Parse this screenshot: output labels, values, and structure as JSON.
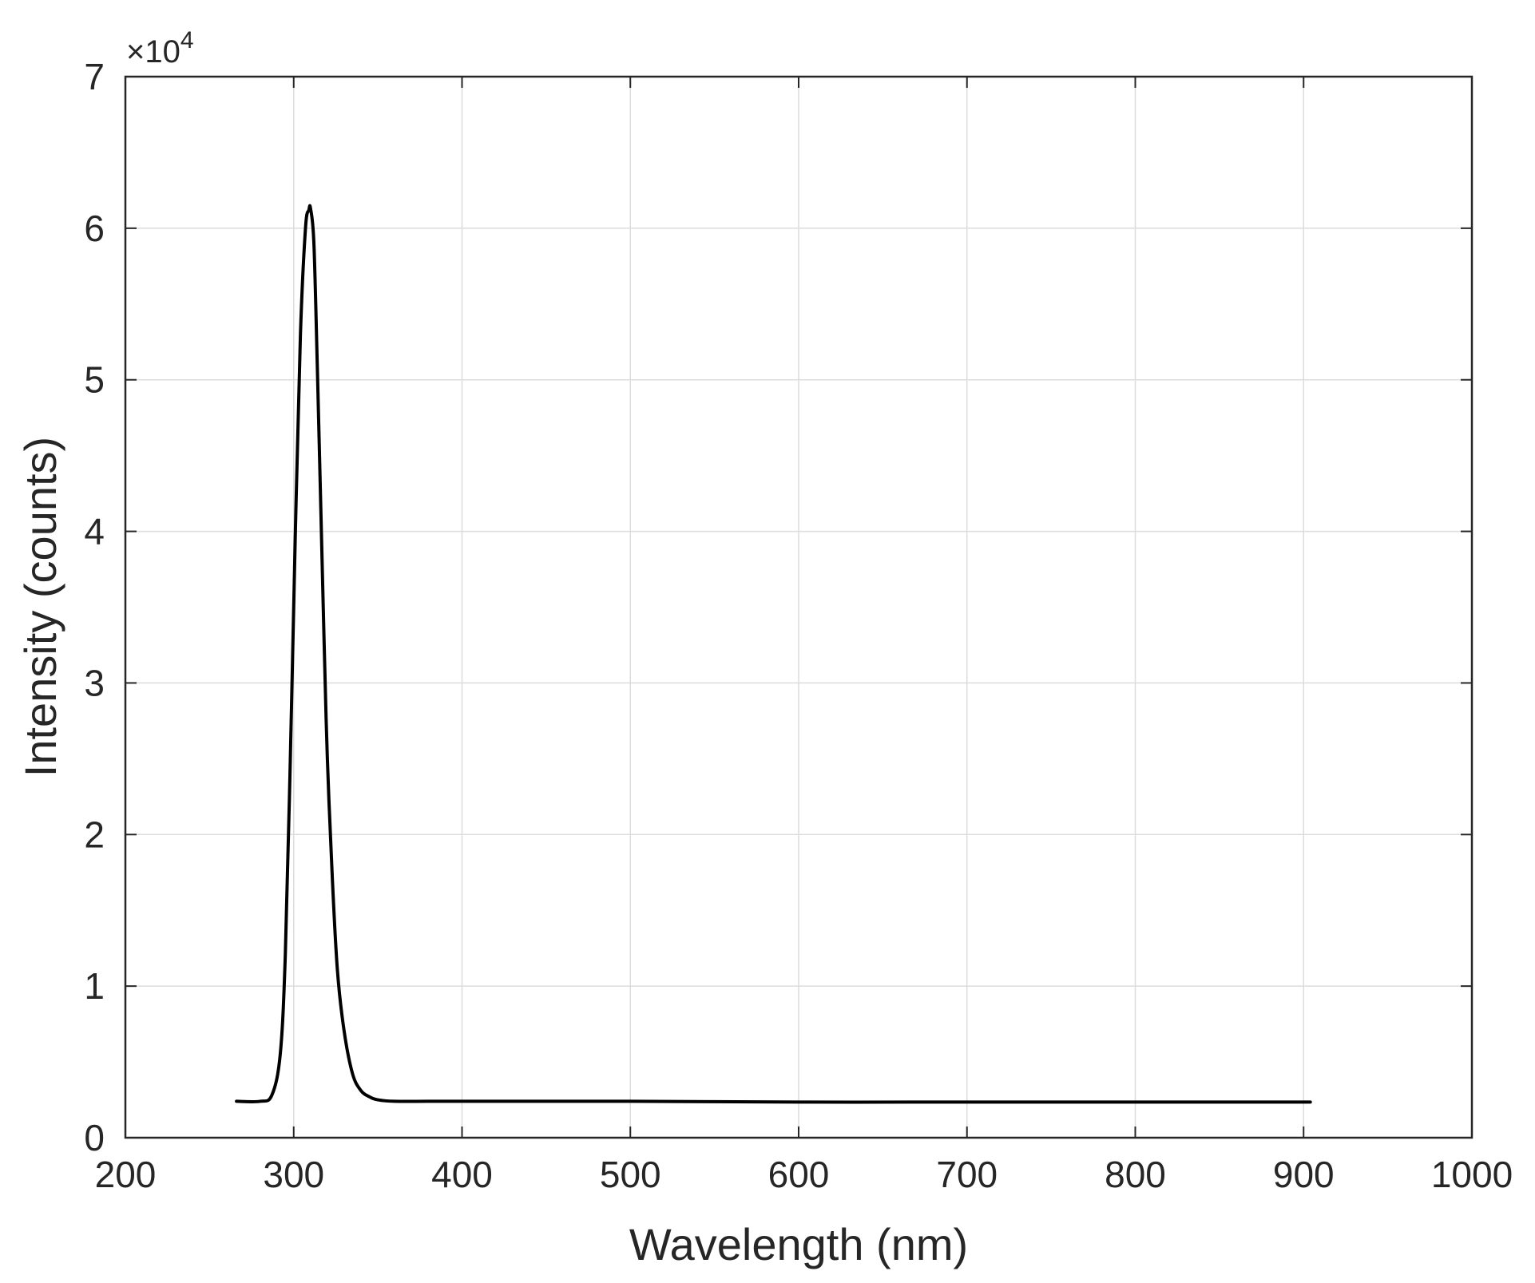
{
  "chart_data": {
    "type": "line",
    "title": "",
    "xlabel": "Wavelength (nm)",
    "ylabel": "Intensity (counts)",
    "y_multiplier": {
      "base": "×10",
      "exponent": "4"
    },
    "xlim": [
      200,
      1000
    ],
    "ylim": [
      0,
      7
    ],
    "x_ticks": [
      "200",
      "300",
      "400",
      "500",
      "600",
      "700",
      "800",
      "900",
      "1000"
    ],
    "y_ticks": [
      "0",
      "1",
      "2",
      "3",
      "4",
      "5",
      "6",
      "7"
    ],
    "grid": true,
    "line_color": "#000000",
    "grid_color": "#dcdcdc",
    "series": [
      {
        "x": [
          266,
          280,
          287,
          292,
          295,
          298,
          301,
          304,
          307,
          309,
          310,
          312,
          314,
          316,
          318,
          320,
          323,
          326,
          330,
          335,
          340,
          345,
          350,
          360,
          380,
          400,
          500,
          600,
          700,
          800,
          904
        ],
        "values": [
          0.24,
          0.24,
          0.28,
          0.55,
          1.2,
          2.5,
          4.0,
          5.3,
          6.0,
          6.12,
          6.13,
          5.9,
          5.1,
          4.2,
          3.3,
          2.5,
          1.7,
          1.1,
          0.7,
          0.42,
          0.31,
          0.27,
          0.25,
          0.24,
          0.24,
          0.24,
          0.24,
          0.235,
          0.235,
          0.235,
          0.235
        ]
      }
    ]
  }
}
